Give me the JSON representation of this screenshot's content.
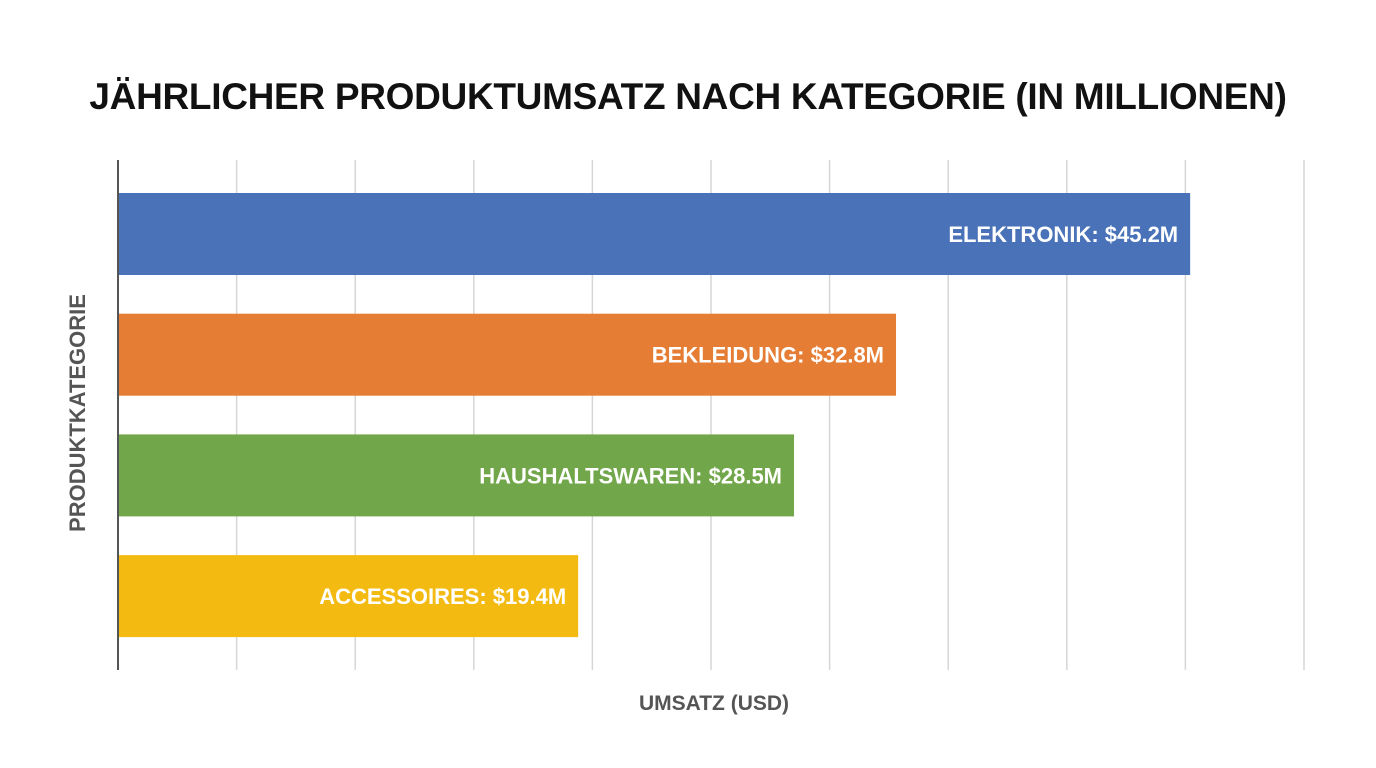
{
  "chart_data": {
    "type": "bar",
    "orientation": "horizontal",
    "title": "JÄHRLICHER PRODUKTUMSATZ NACH KATEGORIE (IN MILLIONEN)",
    "xlabel": "UMSATZ (USD)",
    "ylabel": "PRODUKTKATEGORIE",
    "categories": [
      "ELEKTRONIK",
      "BEKLEIDUNG",
      "HAUSHALTSWAREN",
      "ACCESSOIRES"
    ],
    "values": [
      45.2,
      32.8,
      28.5,
      19.4
    ],
    "data_labels": [
      "ELEKTRONIK: $45.2M",
      "BEKLEIDUNG: $32.8M",
      "HAUSHALTSWAREN: $28.5M",
      "ACCESSOIRES: $19.4M"
    ],
    "colors": [
      "#4a72b8",
      "#e57d34",
      "#71a74a",
      "#f3bb12"
    ],
    "xlim": [
      0,
      50
    ],
    "x_grid_step": 5,
    "grid": true,
    "legend": "none"
  }
}
